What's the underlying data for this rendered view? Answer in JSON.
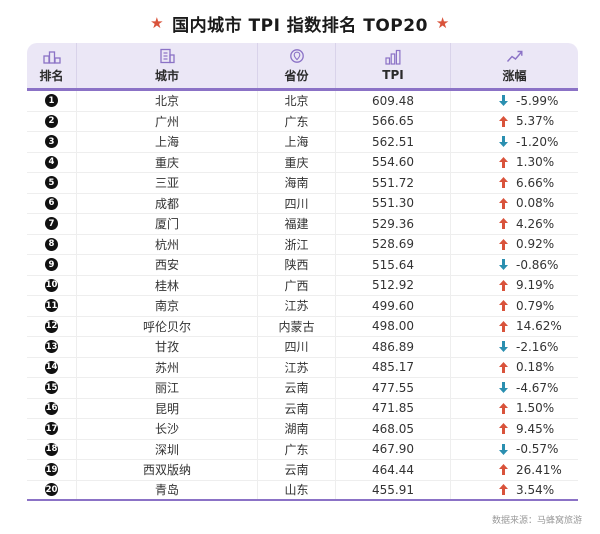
{
  "title": "国内城市 TPI 指数排名 TOP20",
  "columns": {
    "rank": "排名",
    "city": "城市",
    "province": "省份",
    "tpi": "TPI",
    "change": "涨幅"
  },
  "icons": {
    "rank": "podium-icon",
    "city": "building-icon",
    "province": "map-pin-icon",
    "tpi": "bar-chart-icon",
    "change": "trend-up-icon"
  },
  "colors": {
    "up": "#d9533b",
    "down": "#2a8fb0",
    "accent": "#8b72c6",
    "header_bg": "#ebe7f6"
  },
  "chart_data": {
    "type": "table",
    "title": "国内城市 TPI 指数排名 TOP20",
    "columns": [
      "排名",
      "城市",
      "省份",
      "TPI",
      "涨幅"
    ],
    "rows": [
      {
        "rank": "1",
        "city": "北京",
        "province": "北京",
        "tpi": "609.48",
        "change": "-5.99%",
        "dir": "down"
      },
      {
        "rank": "2",
        "city": "广州",
        "province": "广东",
        "tpi": "566.65",
        "change": "5.37%",
        "dir": "up"
      },
      {
        "rank": "3",
        "city": "上海",
        "province": "上海",
        "tpi": "562.51",
        "change": "-1.20%",
        "dir": "down"
      },
      {
        "rank": "4",
        "city": "重庆",
        "province": "重庆",
        "tpi": "554.60",
        "change": "1.30%",
        "dir": "up"
      },
      {
        "rank": "5",
        "city": "三亚",
        "province": "海南",
        "tpi": "551.72",
        "change": "6.66%",
        "dir": "up"
      },
      {
        "rank": "6",
        "city": "成都",
        "province": "四川",
        "tpi": "551.30",
        "change": "0.08%",
        "dir": "up"
      },
      {
        "rank": "7",
        "city": "厦门",
        "province": "福建",
        "tpi": "529.36",
        "change": "4.26%",
        "dir": "up"
      },
      {
        "rank": "8",
        "city": "杭州",
        "province": "浙江",
        "tpi": "528.69",
        "change": "0.92%",
        "dir": "up"
      },
      {
        "rank": "9",
        "city": "西安",
        "province": "陕西",
        "tpi": "515.64",
        "change": "-0.86%",
        "dir": "down"
      },
      {
        "rank": "10",
        "city": "桂林",
        "province": "广西",
        "tpi": "512.92",
        "change": "9.19%",
        "dir": "up"
      },
      {
        "rank": "11",
        "city": "南京",
        "province": "江苏",
        "tpi": "499.60",
        "change": "0.79%",
        "dir": "up"
      },
      {
        "rank": "12",
        "city": "呼伦贝尔",
        "province": "内蒙古",
        "tpi": "498.00",
        "change": "14.62%",
        "dir": "up"
      },
      {
        "rank": "13",
        "city": "甘孜",
        "province": "四川",
        "tpi": "486.89",
        "change": "-2.16%",
        "dir": "down"
      },
      {
        "rank": "14",
        "city": "苏州",
        "province": "江苏",
        "tpi": "485.17",
        "change": "0.18%",
        "dir": "up"
      },
      {
        "rank": "15",
        "city": "丽江",
        "province": "云南",
        "tpi": "477.55",
        "change": "-4.67%",
        "dir": "down"
      },
      {
        "rank": "16",
        "city": "昆明",
        "province": "云南",
        "tpi": "471.85",
        "change": "1.50%",
        "dir": "up"
      },
      {
        "rank": "17",
        "city": "长沙",
        "province": "湖南",
        "tpi": "468.05",
        "change": "9.45%",
        "dir": "up"
      },
      {
        "rank": "18",
        "city": "深圳",
        "province": "广东",
        "tpi": "467.90",
        "change": "-0.57%",
        "dir": "down"
      },
      {
        "rank": "19",
        "city": "西双版纳",
        "province": "云南",
        "tpi": "464.44",
        "change": "26.41%",
        "dir": "up"
      },
      {
        "rank": "20",
        "city": "青岛",
        "province": "山东",
        "tpi": "455.91",
        "change": "3.54%",
        "dir": "up"
      }
    ]
  },
  "source": "数据来源：马蜂窝旅游"
}
